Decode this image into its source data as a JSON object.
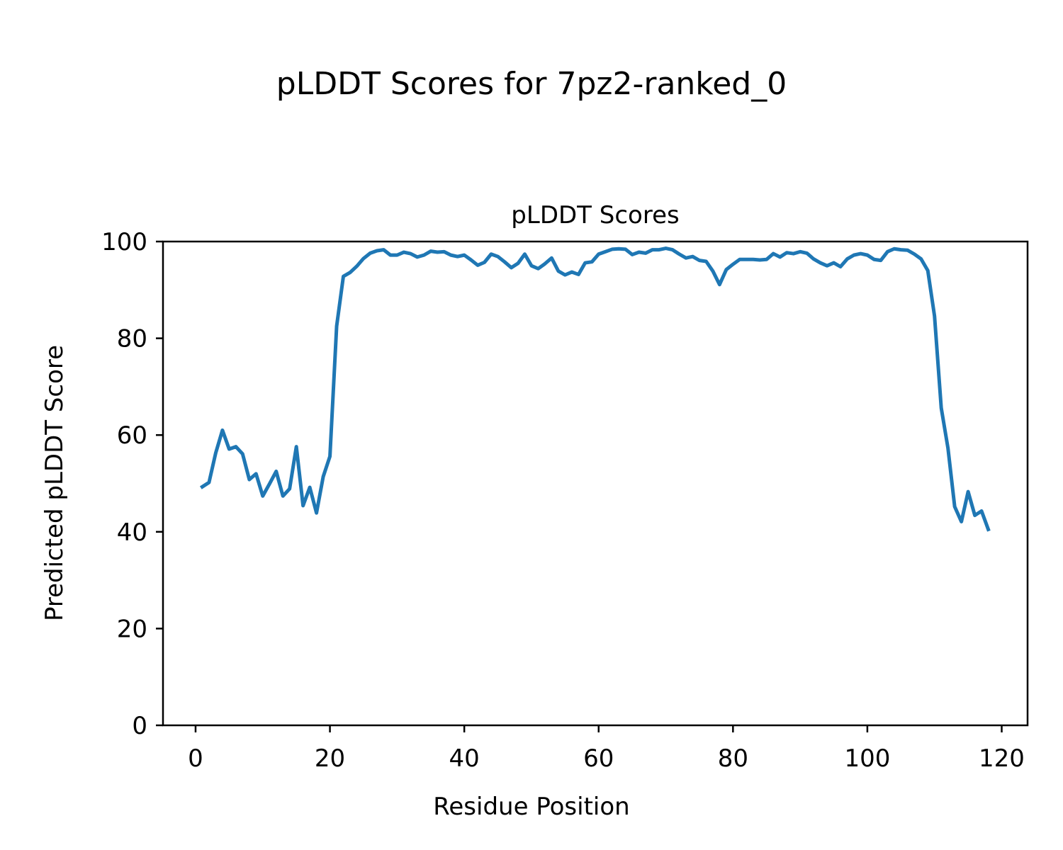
{
  "figure": {
    "suptitle": "pLDDT Scores for 7pz2-ranked_0"
  },
  "chart_data": {
    "type": "line",
    "title": "pLDDT Scores",
    "xlabel": "Residue Position",
    "ylabel": "Predicted pLDDT Score",
    "xlim": [
      -4.85,
      123.85
    ],
    "ylim": [
      0,
      100
    ],
    "xticks": [
      0,
      20,
      40,
      60,
      80,
      100,
      120
    ],
    "yticks": [
      0,
      20,
      40,
      60,
      80,
      100
    ],
    "grid": false,
    "line_color": "#1f77b4",
    "series": [
      {
        "x": [
          1,
          2,
          3,
          4,
          5,
          6,
          7,
          8,
          9,
          10,
          11,
          12,
          13,
          14,
          15,
          16,
          17,
          18,
          19,
          20,
          21,
          22,
          23,
          24,
          25,
          26,
          27,
          28,
          29,
          30,
          31,
          32,
          33,
          34,
          35,
          36,
          37,
          38,
          39,
          40,
          41,
          42,
          43,
          44,
          45,
          46,
          47,
          48,
          49,
          50,
          51,
          52,
          53,
          54,
          55,
          56,
          57,
          58,
          59,
          60,
          61,
          62,
          63,
          64,
          65,
          66,
          67,
          68,
          69,
          70,
          71,
          72,
          73,
          74,
          75,
          76,
          77,
          78,
          79,
          80,
          81,
          82,
          83,
          84,
          85,
          86,
          87,
          88,
          89,
          90,
          91,
          92,
          93,
          94,
          95,
          96,
          97,
          98,
          99,
          100,
          101,
          102,
          103,
          104,
          105,
          106,
          107,
          108,
          109,
          110,
          111,
          112,
          113,
          114,
          115,
          116,
          117,
          118
        ],
        "values": [
          49.3,
          50.2,
          56.3,
          61.0,
          57.1,
          57.6,
          56.1,
          50.8,
          52.0,
          47.4,
          49.9,
          52.5,
          47.4,
          48.9,
          57.6,
          45.4,
          49.2,
          43.9,
          51.4,
          55.6,
          82.5,
          92.8,
          93.6,
          94.9,
          96.5,
          97.6,
          98.1,
          98.3,
          97.2,
          97.2,
          97.8,
          97.5,
          96.8,
          97.2,
          98.0,
          97.8,
          97.9,
          97.2,
          96.9,
          97.2,
          96.2,
          95.1,
          95.7,
          97.4,
          96.9,
          95.8,
          94.6,
          95.5,
          97.4,
          95.0,
          94.4,
          95.4,
          96.6,
          93.9,
          93.1,
          93.7,
          93.2,
          95.6,
          95.8,
          97.4,
          97.9,
          98.4,
          98.5,
          98.4,
          97.3,
          97.8,
          97.6,
          98.3,
          98.3,
          98.6,
          98.3,
          97.4,
          96.6,
          96.9,
          96.1,
          95.9,
          93.9,
          91.1,
          94.2,
          95.3,
          96.3,
          96.3,
          96.3,
          96.2,
          96.3,
          97.5,
          96.8,
          97.7,
          97.5,
          97.9,
          97.6,
          96.4,
          95.6,
          95.0,
          95.6,
          94.8,
          96.4,
          97.2,
          97.5,
          97.2,
          96.3,
          96.1,
          97.9,
          98.5,
          98.3,
          98.2,
          97.4,
          96.4,
          94.0,
          84.6,
          65.6,
          57.3,
          45.2,
          42.1,
          48.3,
          43.4,
          44.3,
          40.5
        ]
      }
    ]
  }
}
